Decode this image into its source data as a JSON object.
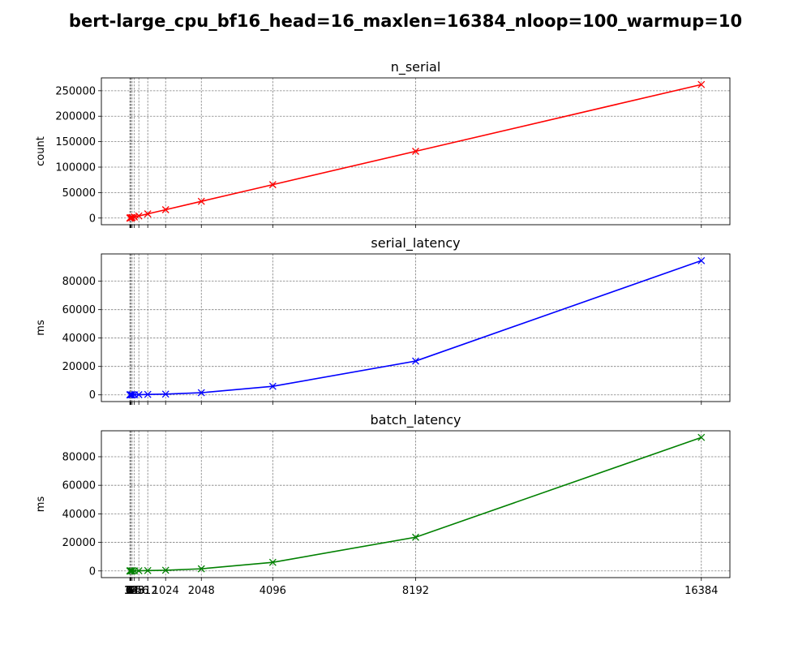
{
  "figure_title": "bert-large_cpu_bf16_head=16_maxlen=16384_nloop=100_warmup=10",
  "chart_data": [
    {
      "type": "line",
      "title": "n_serial",
      "ylabel": "count",
      "xlabel": "",
      "color": "#ff0000",
      "marker": "x",
      "grid": true,
      "x": [
        1,
        2,
        4,
        8,
        16,
        32,
        64,
        128,
        256,
        512,
        1024,
        2048,
        4096,
        8192,
        16384
      ],
      "values": [
        16,
        32,
        64,
        128,
        256,
        512,
        1024,
        2048,
        4096,
        8192,
        16384,
        32768,
        65536,
        131072,
        262144
      ],
      "yticks": [
        0,
        50000,
        100000,
        150000,
        200000,
        250000
      ],
      "ytick_labels": [
        "0",
        "50000",
        "100000",
        "150000",
        "200000",
        "250000"
      ],
      "xticks": [
        1,
        2,
        4,
        8,
        16,
        32,
        64,
        128,
        256,
        512,
        1024,
        2048,
        4096,
        8192,
        16384
      ],
      "xtick_labels": [],
      "xlim": [
        -818.15,
        17203.15
      ],
      "ylim": [
        -13107,
        275251
      ]
    },
    {
      "type": "line",
      "title": "serial_latency",
      "ylabel": "ms",
      "xlabel": "",
      "color": "#0000ff",
      "marker": "x",
      "grid": true,
      "x": [
        1,
        2,
        4,
        8,
        16,
        32,
        64,
        128,
        256,
        512,
        1024,
        2048,
        4096,
        8192,
        16384
      ],
      "values": [
        1.2,
        1.5,
        2.3,
        4,
        8,
        15,
        30,
        60,
        120,
        300,
        500,
        1500,
        6000,
        23800,
        94500
      ],
      "yticks": [
        0,
        20000,
        40000,
        60000,
        80000
      ],
      "ytick_labels": [
        "0",
        "20000",
        "40000",
        "60000",
        "80000"
      ],
      "xticks": [
        1,
        2,
        4,
        8,
        16,
        32,
        64,
        128,
        256,
        512,
        1024,
        2048,
        4096,
        8192,
        16384
      ],
      "xtick_labels": [],
      "xlim": [
        -818.15,
        17203.15
      ],
      "ylim": [
        -4725,
        99225
      ]
    },
    {
      "type": "line",
      "title": "batch_latency",
      "ylabel": "ms",
      "xlabel": "",
      "color": "#008000",
      "marker": "x",
      "grid": true,
      "x": [
        1,
        2,
        4,
        8,
        16,
        32,
        64,
        128,
        256,
        512,
        1024,
        2048,
        4096,
        8192,
        16384
      ],
      "values": [
        1,
        1.2,
        2,
        3.5,
        7,
        14,
        28,
        55,
        110,
        280,
        480,
        1500,
        6000,
        23600,
        93500
      ],
      "yticks": [
        0,
        20000,
        40000,
        60000,
        80000
      ],
      "ytick_labels": [
        "0",
        "20000",
        "40000",
        "60000",
        "80000"
      ],
      "xticks": [
        1,
        2,
        4,
        8,
        16,
        32,
        64,
        128,
        256,
        512,
        1024,
        2048,
        4096,
        8192,
        16384
      ],
      "xtick_labels": [
        "1",
        "2",
        "4",
        "8",
        "16",
        "32",
        "64",
        "128",
        "256",
        "512",
        "1024",
        "2048",
        "4096",
        "8192",
        "16384"
      ],
      "xlim": [
        -818.15,
        17203.15
      ],
      "ylim": [
        -4675,
        98175
      ]
    }
  ]
}
